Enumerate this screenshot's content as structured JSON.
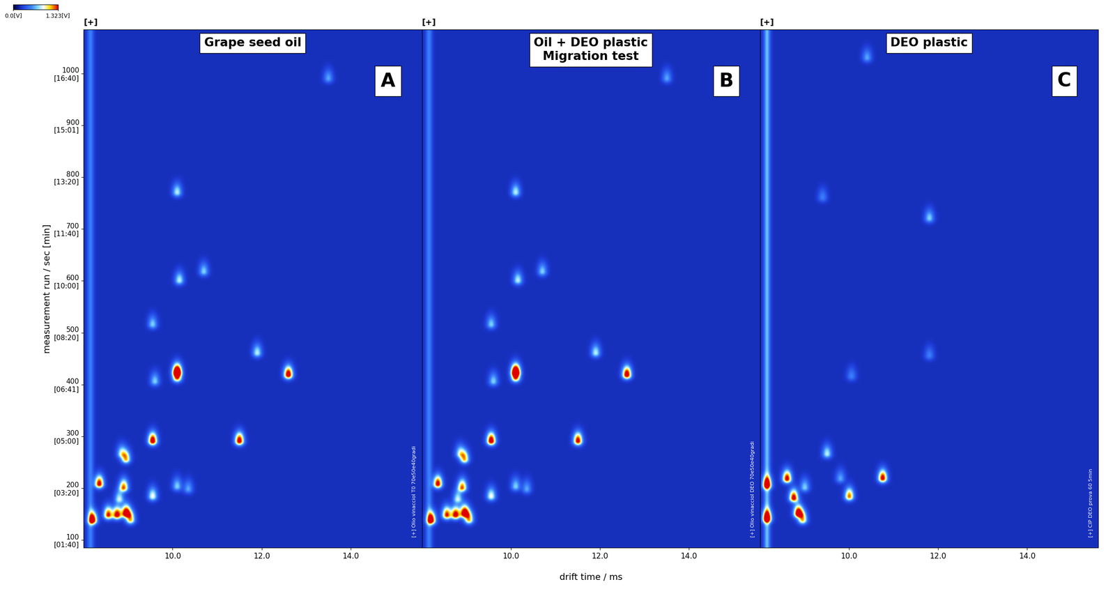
{
  "chart_data": {
    "type": "heatmap",
    "x_label": "drift time / ms",
    "y_label": "measurement run / sec [min]",
    "xlim": [
      8.0,
      15.6
    ],
    "ylim": [
      85,
      1085
    ],
    "xticks": [
      {
        "value": 10,
        "label": "10.0"
      },
      {
        "value": 12,
        "label": "12.0"
      },
      {
        "value": 14,
        "label": "14.0"
      }
    ],
    "yticks": [
      {
        "value": 100,
        "label": "100\n[01:40]"
      },
      {
        "value": 200,
        "label": "200\n[03:20]"
      },
      {
        "value": 300,
        "label": "300\n[05:00]"
      },
      {
        "value": 400,
        "label": "400\n[06:41]"
      },
      {
        "value": 500,
        "label": "500\n[08:20]"
      },
      {
        "value": 600,
        "label": "600\n[10:00]"
      },
      {
        "value": 700,
        "label": "700\n[11:40]"
      },
      {
        "value": 800,
        "label": "800\n[13:20]"
      },
      {
        "value": 900,
        "label": "900\n[15:01]"
      },
      {
        "value": 1000,
        "label": "1000\n[16:40]"
      }
    ],
    "colorbar": {
      "range": [
        0.0,
        1.323
      ],
      "ticks": [
        {
          "value": 0.0,
          "label": "0.0[V]"
        },
        {
          "value": 1.323,
          "label": "1.323[V]"
        }
      ]
    },
    "panels": [
      {
        "title": "Grape seed oil",
        "letter": "A",
        "marker_text": "[+]",
        "sample_text": "[+] Olio vinacciol T0 70e50e40gradi",
        "background": 0.22,
        "rip": {
          "drift_time": 8.15,
          "intensity": 0.3
        },
        "peaks": {
          "x": [
            8.2,
            8.35,
            8.55,
            8.75,
            8.95,
            9.05,
            8.9,
            8.8,
            8.95,
            8.85,
            9.55,
            9.55,
            9.55,
            10.1,
            10.1,
            12.6,
            11.5,
            10.15,
            10.1,
            10.7,
            11.9,
            13.5,
            10.1,
            10.35,
            9.6
          ],
          "y": [
            137,
            207,
            147,
            147,
            150,
            138,
            200,
            178,
            255,
            265,
            183,
            290,
            515,
            423,
            412,
            418,
            290,
            600,
            770,
            617,
            460,
            990,
            202,
            197,
            405
          ],
          "values": [
            1.3,
            1.2,
            1.1,
            1.2,
            1.3,
            0.9,
            1.0,
            0.6,
            0.9,
            0.6,
            0.7,
            1.3,
            0.5,
            1.3,
            1.0,
            1.3,
            1.25,
            0.6,
            0.6,
            0.5,
            0.6,
            0.4,
            0.5,
            0.4,
            0.5
          ]
        }
      },
      {
        "title": "Oil + DEO plastic\nMigration test",
        "letter": "B",
        "marker_text": "[+]",
        "sample_text": "[+] Olio vinacciol DEO 70e50e40gradi",
        "background": 0.22,
        "rip": {
          "drift_time": 8.15,
          "intensity": 0.3
        },
        "peaks": {
          "x": [
            8.2,
            8.35,
            8.55,
            8.75,
            8.95,
            9.05,
            8.9,
            8.8,
            8.95,
            8.85,
            9.55,
            9.55,
            9.55,
            10.1,
            10.1,
            12.6,
            11.5,
            10.15,
            10.1,
            10.7,
            11.9,
            13.5,
            10.1,
            10.35,
            9.6
          ],
          "y": [
            137,
            207,
            147,
            147,
            150,
            138,
            200,
            178,
            255,
            265,
            183,
            290,
            515,
            423,
            412,
            418,
            290,
            600,
            770,
            617,
            460,
            990,
            202,
            197,
            405
          ],
          "values": [
            1.3,
            1.2,
            1.1,
            1.2,
            1.3,
            0.9,
            1.0,
            0.6,
            0.9,
            0.6,
            0.7,
            1.3,
            0.5,
            1.3,
            1.0,
            1.3,
            1.2,
            0.6,
            0.6,
            0.5,
            0.6,
            0.4,
            0.5,
            0.4,
            0.5
          ]
        }
      },
      {
        "title": "DEO plastic",
        "letter": "C",
        "marker_text": "[+]",
        "sample_text": "[+] CIP DEO prova 60 5min",
        "background": 0.22,
        "rip": {
          "drift_time": 8.15,
          "intensity": 0.45
        },
        "peaks": {
          "x": [
            8.15,
            8.15,
            8.6,
            8.75,
            8.85,
            8.95,
            9.5,
            10.0,
            10.75,
            11.8,
            10.4,
            9.0,
            9.8,
            10.05,
            9.4,
            11.8
          ],
          "y": [
            140,
            205,
            217,
            180,
            150,
            138,
            265,
            183,
            218,
            720,
            1030,
            200,
            217,
            415,
            760,
            455
          ],
          "values": [
            1.3,
            1.2,
            1.2,
            1.2,
            1.3,
            0.9,
            0.6,
            1.0,
            1.2,
            0.5,
            0.4,
            0.5,
            0.4,
            0.3,
            0.3,
            0.3
          ]
        }
      }
    ]
  }
}
